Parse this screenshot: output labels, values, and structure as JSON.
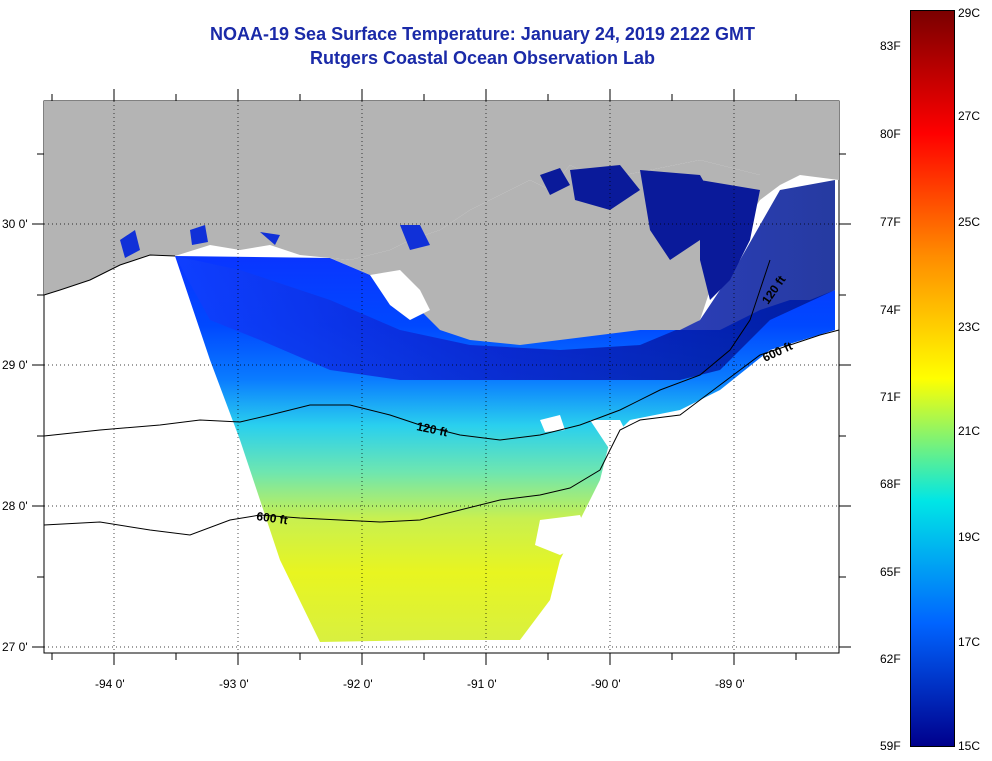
{
  "title": "NOAA-19 Sea Surface Temperature:  January 24, 2019 2122 GMT",
  "subtitle": "Rutgers Coastal Ocean Observation Lab",
  "lon_ticks": [
    "-94 0'",
    "-93 0'",
    "-92 0'",
    "-91 0'",
    "-90 0'",
    "-89 0'"
  ],
  "lat_ticks": [
    "30 0'",
    "29 0'",
    "28 0'",
    "27 0'"
  ],
  "depth_contours": [
    "120 ft",
    "600 ft",
    "120 ft",
    "600 ft"
  ],
  "colorbar": {
    "fahrenheit": [
      "83F",
      "80F",
      "77F",
      "74F",
      "71F",
      "68F",
      "65F",
      "62F",
      "59F"
    ],
    "celsius": [
      "29C",
      "27C",
      "25C",
      "23C",
      "21C",
      "19C",
      "17C",
      "15C"
    ],
    "colors": [
      "#7a0000",
      "#ff0000",
      "#ff8c00",
      "#ffff00",
      "#00e6e6",
      "#0064ff",
      "#00008c"
    ]
  }
}
